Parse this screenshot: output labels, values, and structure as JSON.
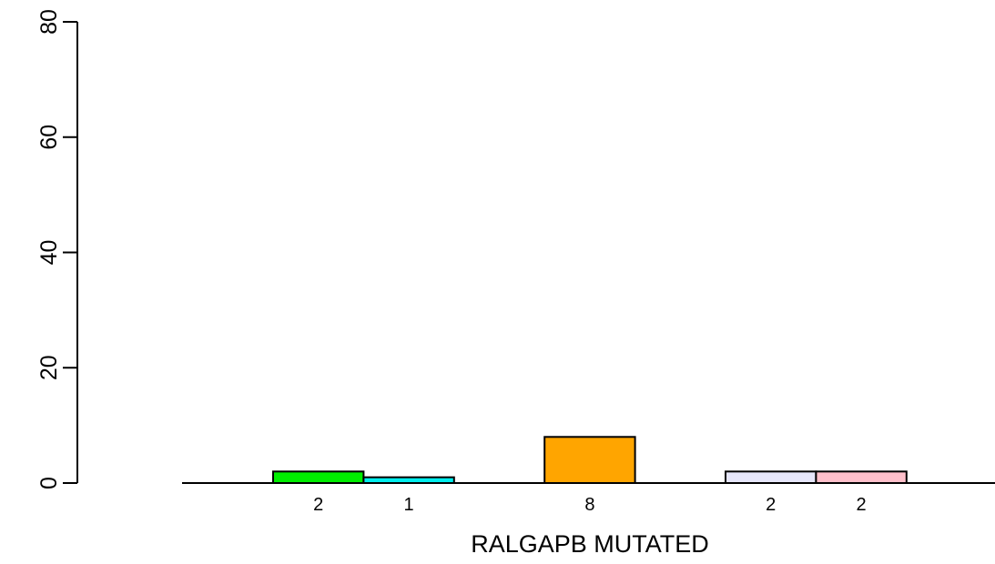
{
  "chart_data": {
    "type": "bar",
    "xlabel": "RALGAPB MUTATED",
    "ylabel": "",
    "ylim": [
      0,
      80
    ],
    "yticks": [
      0,
      20,
      40,
      60,
      80
    ],
    "grid": false,
    "bars": [
      {
        "value": 2,
        "label": "2",
        "color": "#00ee00"
      },
      {
        "value": 1,
        "label": "1",
        "color": "#00eeee"
      },
      {
        "value": 0,
        "label": "",
        "color": "#ffffff"
      },
      {
        "value": 8,
        "label": "8",
        "color": "#ffa500"
      },
      {
        "value": 0,
        "label": "",
        "color": "#ffffff"
      },
      {
        "value": 2,
        "label": "2",
        "color": "#e6e6fa"
      },
      {
        "value": 2,
        "label": "2",
        "color": "#ffc0cb"
      }
    ]
  }
}
